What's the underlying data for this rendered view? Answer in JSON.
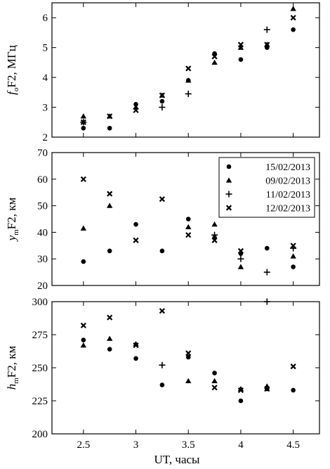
{
  "figure": {
    "xlabel": "UT, часы"
  },
  "chart_data": [
    {
      "type": "scatter",
      "ylabel": "f_oF2, МГц",
      "ylabel_parts": [
        "f",
        "o",
        "F2, МГц"
      ],
      "xlim": [
        2.2,
        4.75
      ],
      "ylim": [
        2,
        6.5
      ],
      "yticks": [
        2,
        3,
        4,
        5,
        6
      ],
      "xticks": [
        2.5,
        3,
        3.5,
        4,
        4.5
      ],
      "series": [
        {
          "name": "15/02/2013",
          "marker": "circle",
          "x": [
            2.5,
            2.75,
            3,
            3.25,
            3.5,
            3.75,
            4,
            4.25,
            4.5
          ],
          "y": [
            2.3,
            2.3,
            3.1,
            3.2,
            3.9,
            4.8,
            4.6,
            5.0,
            5.6
          ]
        },
        {
          "name": "09/02/2013",
          "marker": "triangle",
          "x": [
            2.5,
            2.75,
            3,
            3.25,
            3.5,
            3.75,
            4,
            4.25,
            4.5
          ],
          "y": [
            2.7,
            2.7,
            3.0,
            3.4,
            3.9,
            4.5,
            5.0,
            5.1,
            6.3
          ]
        },
        {
          "name": "11/02/2013",
          "marker": "plus",
          "x": [
            2.5,
            3.25,
            3.5,
            4.25
          ],
          "y": [
            2.5,
            3.0,
            3.45,
            5.6
          ]
        },
        {
          "name": "12/02/2013",
          "marker": "x",
          "x": [
            2.5,
            2.75,
            3,
            3.25,
            3.5,
            3.75,
            4,
            4.25,
            4.5
          ],
          "y": [
            2.5,
            2.7,
            2.9,
            3.4,
            4.3,
            4.7,
            5.1,
            5.1,
            6.0
          ]
        }
      ]
    },
    {
      "type": "scatter",
      "ylabel": "y_mF2, км",
      "ylabel_parts": [
        "y",
        "m",
        "F2, км"
      ],
      "xlim": [
        2.2,
        4.75
      ],
      "ylim": [
        20,
        70
      ],
      "yticks": [
        20,
        30,
        40,
        50,
        60,
        70
      ],
      "xticks": [
        2.5,
        3,
        3.5,
        4,
        4.5
      ],
      "legend": "top-right",
      "series": [
        {
          "name": "15/02/2013",
          "marker": "circle",
          "x": [
            2.5,
            2.75,
            3,
            3.25,
            3.5,
            3.75,
            4,
            4.25,
            4.5
          ],
          "y": [
            29,
            33,
            43,
            33,
            45,
            38,
            32,
            34,
            27
          ]
        },
        {
          "name": "09/02/2013",
          "marker": "triangle",
          "x": [
            2.5,
            2.75,
            3.5,
            3.75,
            4,
            4.5
          ],
          "y": [
            41.5,
            50,
            42,
            43,
            27,
            31
          ]
        },
        {
          "name": "11/02/2013",
          "marker": "plus",
          "x": [
            3.75,
            4,
            4.25,
            4.5
          ],
          "y": [
            39,
            30,
            25,
            34
          ]
        },
        {
          "name": "12/02/2013",
          "marker": "x",
          "x": [
            2.5,
            2.75,
            3,
            3.25,
            3.5,
            3.75,
            4,
            4.5
          ],
          "y": [
            60,
            54.5,
            37,
            52.5,
            39,
            37,
            33,
            35
          ]
        }
      ]
    },
    {
      "type": "scatter",
      "ylabel": "h_mF2, км",
      "ylabel_parts": [
        "h",
        "m",
        "F2, км"
      ],
      "xlim": [
        2.2,
        4.75
      ],
      "ylim": [
        200,
        300
      ],
      "yticks": [
        200,
        225,
        250,
        275,
        300
      ],
      "xticks": [
        2.5,
        3,
        3.5,
        4,
        4.5
      ],
      "xlabel": "UT, часы",
      "series": [
        {
          "name": "15/02/2013",
          "marker": "circle",
          "x": [
            2.5,
            2.75,
            3,
            3.25,
            3.5,
            3.75,
            4,
            4.25,
            4.5
          ],
          "y": [
            271,
            264,
            257,
            237,
            258,
            246,
            225,
            234,
            233
          ]
        },
        {
          "name": "09/02/2013",
          "marker": "triangle",
          "x": [
            2.5,
            2.75,
            3,
            3.5,
            3.75,
            4,
            4.25
          ],
          "y": [
            267,
            272,
            268,
            240,
            240,
            234,
            236
          ]
        },
        {
          "name": "11/02/2013",
          "marker": "plus",
          "x": [
            3.25,
            4.25
          ],
          "y": [
            252,
            300
          ]
        },
        {
          "name": "12/02/2013",
          "marker": "x",
          "x": [
            2.5,
            2.75,
            3,
            3.25,
            3.5,
            3.75,
            4,
            4.25,
            4.5
          ],
          "y": [
            282,
            288,
            267,
            293,
            261,
            235,
            233,
            234,
            251
          ]
        }
      ]
    }
  ]
}
